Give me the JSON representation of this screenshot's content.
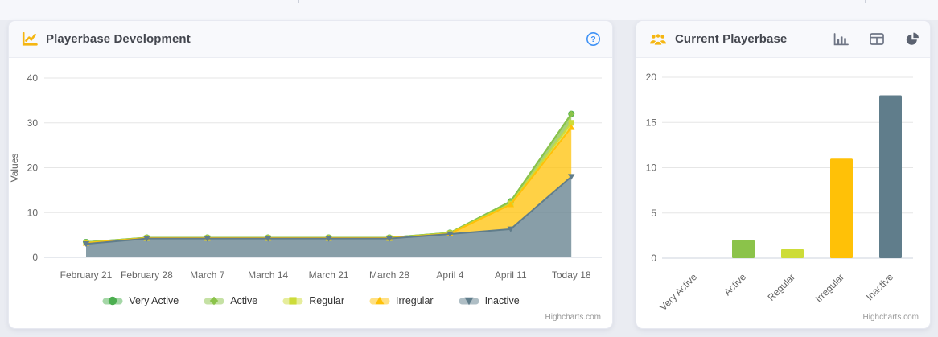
{
  "ui": {
    "credit": "Highcharts.com",
    "dev_card": {
      "title": "Playerbase Development",
      "help_glyph": "?"
    },
    "current_card": {
      "title": "Current Playerbase",
      "toolbar": [
        "column-chart",
        "table",
        "pie-chart"
      ]
    },
    "colors": {
      "header_icon_amber": "#F5B612",
      "help_blue": "#3F92F5",
      "toolbar_gray": "#6E7585",
      "toolbar_gray_dark": "#5B6270",
      "card_title": "#44474F"
    }
  },
  "chart_data": [
    {
      "type": "area",
      "stacked": true,
      "title": "",
      "xlabel": "",
      "ylabel": "Values",
      "ylim": [
        0,
        40
      ],
      "yticks": [
        0,
        10,
        20,
        30,
        40
      ],
      "grid": true,
      "legend_position": "bottom",
      "categories": [
        "February 21",
        "February 28",
        "March 7",
        "March 14",
        "March 21",
        "March 28",
        "April 4",
        "April 11",
        "Today 18"
      ],
      "series": [
        {
          "name": "Very Active",
          "color": "#4CAF50",
          "marker": "circle",
          "values": [
            0,
            0,
            0,
            0,
            0,
            0,
            0,
            0,
            0
          ]
        },
        {
          "name": "Active",
          "color": "#8BC34A",
          "marker": "diamond",
          "values": [
            0.1,
            0.1,
            0.1,
            0.1,
            0.1,
            0.1,
            0.1,
            0.5,
            2
          ]
        },
        {
          "name": "Regular",
          "color": "#CDDC39",
          "marker": "square",
          "values": [
            0.1,
            0,
            0,
            0,
            0,
            0,
            0.1,
            0.2,
            1
          ]
        },
        {
          "name": "Irregular",
          "color": "#FFC107",
          "marker": "triangle",
          "values": [
            0.2,
            0.1,
            0.1,
            0.1,
            0.1,
            0.1,
            0.1,
            5.5,
            11
          ]
        },
        {
          "name": "Inactive",
          "color": "#607D8B",
          "marker": "triangle-down",
          "values": [
            3,
            4.2,
            4.2,
            4.2,
            4.2,
            4.2,
            5.2,
            6.3,
            18
          ]
        }
      ]
    },
    {
      "type": "bar",
      "title": "",
      "xlabel": "",
      "ylabel": "",
      "ylim": [
        0,
        20
      ],
      "yticks": [
        0,
        5,
        10,
        15,
        20
      ],
      "grid": true,
      "xlabel_rotation": -45,
      "categories": [
        "Very Active",
        "Active",
        "Regular",
        "Irregular",
        "Inactive"
      ],
      "values": [
        0,
        2,
        1,
        11,
        18
      ],
      "colors": [
        "#4CAF50",
        "#8BC34A",
        "#CDDC39",
        "#FFC107",
        "#607D8B"
      ]
    }
  ]
}
